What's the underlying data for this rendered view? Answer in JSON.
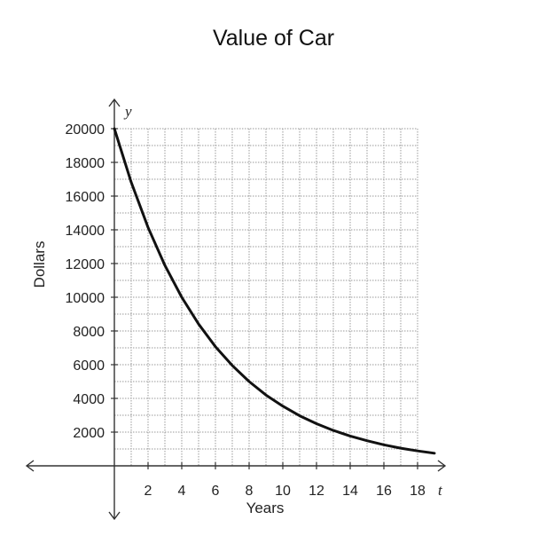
{
  "chart_data": {
    "type": "line",
    "title": "Value of Car",
    "xlabel": "Years",
    "ylabel": "Dollars",
    "x_var": "t",
    "y_var": "y",
    "xlim": [
      0,
      19
    ],
    "ylim": [
      0,
      20000
    ],
    "x_ticks": [
      2,
      4,
      6,
      8,
      10,
      12,
      14,
      16,
      18
    ],
    "y_ticks": [
      2000,
      4000,
      6000,
      8000,
      10000,
      12000,
      14000,
      16000,
      18000,
      20000
    ],
    "grid": true,
    "series": [
      {
        "x": [
          0,
          1,
          2,
          3,
          4,
          5,
          6,
          7,
          8,
          9,
          10,
          11,
          12,
          13,
          14,
          15,
          16,
          17,
          18,
          19
        ],
        "y": [
          20000,
          16820,
          14140,
          11890,
          10000,
          8410,
          7070,
          5950,
          5000,
          4200,
          3540,
          2970,
          2500,
          2100,
          1770,
          1490,
          1250,
          1050,
          885,
          745
        ]
      }
    ],
    "colors": {
      "curve": "#111111",
      "grid": "#9a9a9a",
      "axis": "#333333"
    }
  }
}
